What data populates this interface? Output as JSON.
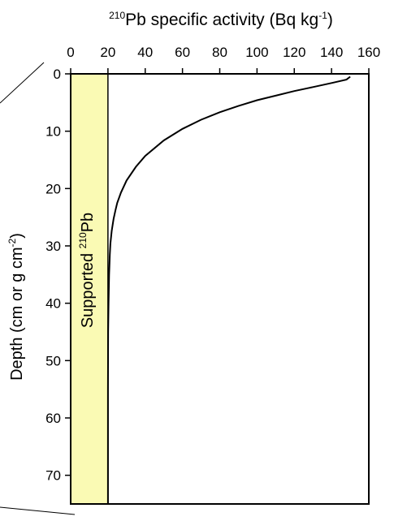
{
  "chart_data": {
    "type": "line",
    "title": {
      "pre": "",
      "sup": "210",
      "main": "Pb specific activity (Bq kg",
      "sup2": "-1",
      "post": ")"
    },
    "xlabel": {
      "sup": "210",
      "main": "Pb specific activity (Bq kg",
      "sup2": "-1",
      "post": ")"
    },
    "ylabel": {
      "main": "Depth (cm or g cm",
      "sup": "-2",
      "post": ")"
    },
    "x_axis_position": "top",
    "xlim": [
      0,
      160
    ],
    "ylim": [
      0,
      75
    ],
    "y_inverted": true,
    "x_ticks": [
      "0",
      "20",
      "40",
      "60",
      "80",
      "100",
      "120",
      "140",
      "160"
    ],
    "y_ticks": [
      "0",
      "10",
      "20",
      "30",
      "40",
      "50",
      "60",
      "70"
    ],
    "supported_band": {
      "x_range": [
        0,
        20
      ],
      "color": "#fafab4",
      "label": {
        "main": "Supported ",
        "sup": "210",
        "post": "Pb"
      }
    },
    "series": [
      {
        "color": "#000000",
        "x": [
          150,
          148,
          140,
          130,
          120,
          110,
          100,
          90,
          80,
          70,
          60,
          50,
          40,
          35,
          30,
          27,
          25,
          24,
          23,
          22,
          21.3,
          21.0,
          20.6,
          20.3,
          20.1,
          20.0,
          20.0
        ],
        "y": [
          0.5,
          1,
          1.6,
          2.3,
          3.0,
          3.8,
          4.6,
          5.6,
          6.7,
          8.0,
          9.6,
          11.6,
          14.3,
          16.2,
          18.6,
          20.7,
          22.5,
          23.8,
          25.3,
          27.4,
          29.6,
          31.5,
          35,
          40,
          45,
          55,
          75
        ]
      }
    ],
    "grid": false,
    "legend": "none"
  },
  "decor": {
    "line_color": "#000000"
  }
}
